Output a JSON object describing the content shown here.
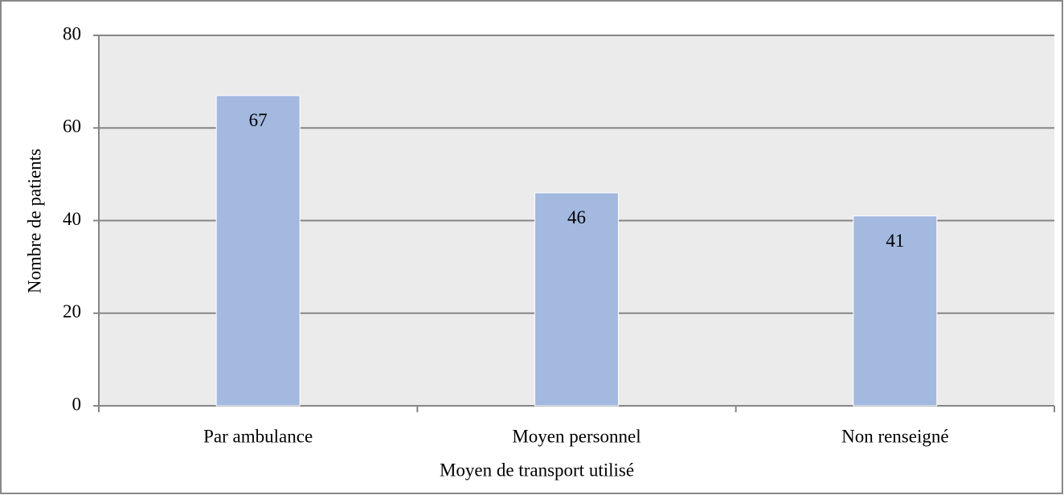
{
  "chart_data": {
    "type": "bar",
    "categories": [
      "Par ambulance",
      "Moyen personnel",
      "Non renseigné"
    ],
    "values": [
      67,
      46,
      41
    ],
    "color": "#a3b9e0",
    "xlabel": "Moyen de transport utilisé",
    "ylabel": "Nombre de patients",
    "ylim": [
      0,
      80
    ],
    "yticks": [
      0,
      20,
      40,
      60,
      80
    ],
    "grid": true
  }
}
